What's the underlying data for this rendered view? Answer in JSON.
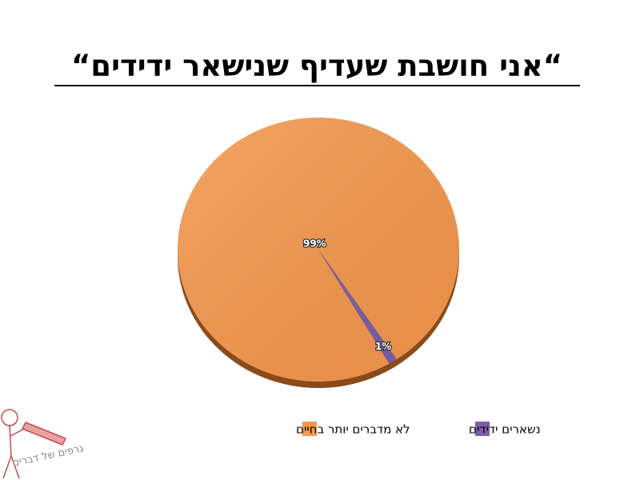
{
  "chart_data": {
    "type": "pie",
    "title": "“אני חושבת שעדיף שנישאר ידידים“",
    "categories": [
      "לא מדברים יותר בחיים",
      "נשארים ידידים"
    ],
    "values": [
      99,
      1
    ],
    "value_labels": [
      "99%",
      "1%"
    ],
    "colors": [
      "#f5974c",
      "#7b5ea7"
    ],
    "legend": "bottom"
  },
  "watermark": "גרפים של דברים"
}
